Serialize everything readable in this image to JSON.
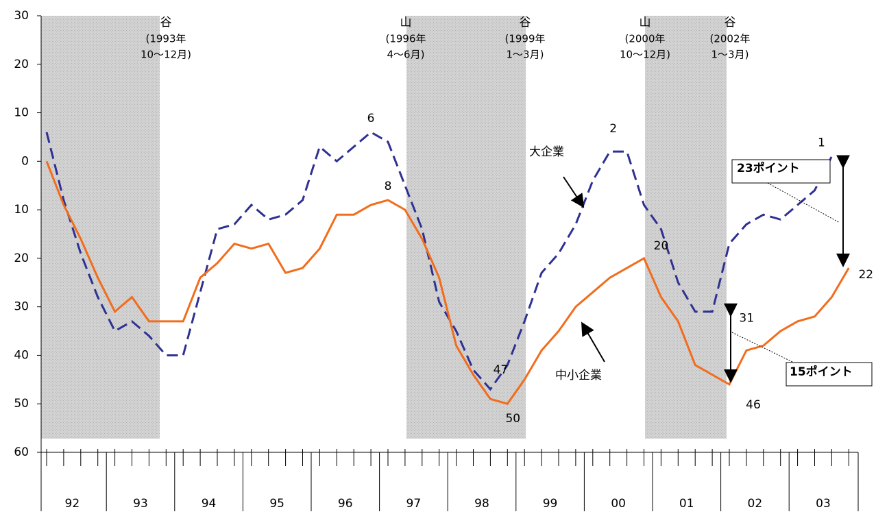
{
  "chart_data": {
    "type": "line",
    "categories": [
      "92",
      null,
      null,
      null,
      "93",
      null,
      null,
      null,
      "94",
      null,
      null,
      null,
      "95",
      null,
      null,
      null,
      "96",
      null,
      null,
      null,
      "97",
      null,
      null,
      null,
      "98",
      null,
      null,
      null,
      "99",
      null,
      null,
      null,
      "00",
      null,
      null,
      null,
      "01",
      null,
      null,
      null,
      "02",
      null,
      null,
      null,
      "03",
      null,
      null,
      null
    ],
    "series": [
      {
        "name": "大企業",
        "color": "#2e3192",
        "dashed": true,
        "values": [
          6,
          -8,
          -19,
          -28,
          -35,
          -33,
          -36,
          -40,
          -40,
          -27,
          -14,
          -13,
          -9,
          -12,
          -11,
          -8,
          3,
          0,
          3,
          6,
          4,
          -5,
          -14,
          -29,
          -35,
          -43,
          -47,
          -42,
          -33,
          -23,
          -19,
          -13,
          -4,
          2,
          2,
          -9,
          -14,
          -25,
          -31,
          -31,
          -17,
          -13,
          -11,
          -12,
          -9,
          -6,
          1,
          null
        ],
        "value_labels": [
          null,
          null,
          null,
          null,
          null,
          null,
          null,
          null,
          null,
          null,
          null,
          null,
          null,
          null,
          null,
          null,
          null,
          null,
          null,
          "6",
          null,
          null,
          null,
          null,
          null,
          null,
          "47",
          null,
          null,
          null,
          null,
          null,
          null,
          "2",
          null,
          null,
          null,
          null,
          "31",
          null,
          null,
          null,
          null,
          null,
          null,
          null,
          "1",
          null
        ]
      },
      {
        "name": "中小企業",
        "color": "#f26c1c",
        "dashed": false,
        "values": [
          0,
          -9,
          -16,
          -24,
          -31,
          -28,
          -33,
          -33,
          -33,
          -24,
          -21,
          -17,
          -18,
          -17,
          -23,
          -22,
          -18,
          -11,
          -11,
          -9,
          -8,
          -10,
          -16,
          -24,
          -38,
          -44,
          -49,
          -50,
          -45,
          -39,
          -35,
          -30,
          -27,
          -24,
          -22,
          -20,
          -28,
          -33,
          -42,
          -44,
          -46,
          -39,
          -38,
          -35,
          -33,
          -32,
          -28,
          -22
        ],
        "value_labels": [
          null,
          null,
          null,
          null,
          null,
          null,
          null,
          null,
          null,
          null,
          null,
          null,
          null,
          null,
          null,
          null,
          null,
          null,
          null,
          null,
          "8",
          null,
          null,
          null,
          null,
          null,
          null,
          "50",
          null,
          null,
          null,
          null,
          null,
          null,
          null,
          "20",
          null,
          null,
          null,
          null,
          "46",
          null,
          null,
          null,
          null,
          null,
          null,
          "22"
        ]
      }
    ],
    "ylim": [
      -60,
      30
    ],
    "yticks": [
      {
        "value": -60,
        "label": "60"
      },
      {
        "value": -50,
        "label": "50"
      },
      {
        "value": -40,
        "label": "40"
      },
      {
        "value": -30,
        "label": "30"
      },
      {
        "value": -20,
        "label": "20"
      },
      {
        "value": -10,
        "label": "10"
      },
      0,
      10,
      20,
      30
    ],
    "cycle_notes": [
      {
        "mark": "谷",
        "date": "(1993年",
        "months": "10～12月)"
      },
      {
        "mark": "山",
        "date": "(1996年",
        "months": "4～6月)"
      },
      {
        "mark": "谷",
        "date": "(1999年",
        "months": "1～3月)"
      },
      {
        "mark": "山",
        "date": "(2000年",
        "months": "10～12月)"
      },
      {
        "mark": "谷",
        "date": "(2002年",
        "months": "1～3月)"
      }
    ],
    "gap_notes": [
      "23ポイント",
      "15ポイント"
    ]
  }
}
